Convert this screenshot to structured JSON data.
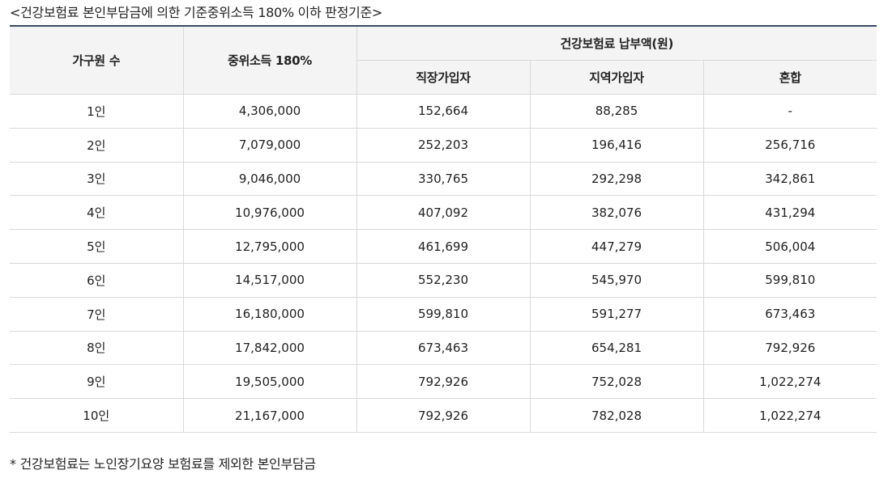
{
  "caption": "<건강보험료 본인부담금에 의한 기준중위소득 180% 이하 판정기준>",
  "table": {
    "headers": {
      "household": "가구원 수",
      "income": "중위소득 180%",
      "premium_group": "건강보험료 납부액(원)",
      "employee": "직장가입자",
      "regional": "지역가입자",
      "mixed": "혼합"
    },
    "rows": [
      {
        "household": "1인",
        "income": "4,306,000",
        "employee": "152,664",
        "regional": "88,285",
        "mixed": "-"
      },
      {
        "household": "2인",
        "income": "7,079,000",
        "employee": "252,203",
        "regional": "196,416",
        "mixed": "256,716"
      },
      {
        "household": "3인",
        "income": "9,046,000",
        "employee": "330,765",
        "regional": "292,298",
        "mixed": "342,861"
      },
      {
        "household": "4인",
        "income": "10,976,000",
        "employee": "407,092",
        "regional": "382,076",
        "mixed": "431,294"
      },
      {
        "household": "5인",
        "income": "12,795,000",
        "employee": "461,699",
        "regional": "447,279",
        "mixed": "506,004"
      },
      {
        "household": "6인",
        "income": "14,517,000",
        "employee": "552,230",
        "regional": "545,970",
        "mixed": "599,810"
      },
      {
        "household": "7인",
        "income": "16,180,000",
        "employee": "599,810",
        "regional": "591,277",
        "mixed": "673,463"
      },
      {
        "household": "8인",
        "income": "17,842,000",
        "employee": "673,463",
        "regional": "654,281",
        "mixed": "792,926"
      },
      {
        "household": "9인",
        "income": "19,505,000",
        "employee": "792,926",
        "regional": "752,028",
        "mixed": "1,022,274"
      },
      {
        "household": "10인",
        "income": "21,167,000",
        "employee": "792,926",
        "regional": "782,028",
        "mixed": "1,022,274"
      }
    ]
  },
  "footnote": "* 건강보험료는 노인장기요양 보험료를 제외한 본인부담금"
}
